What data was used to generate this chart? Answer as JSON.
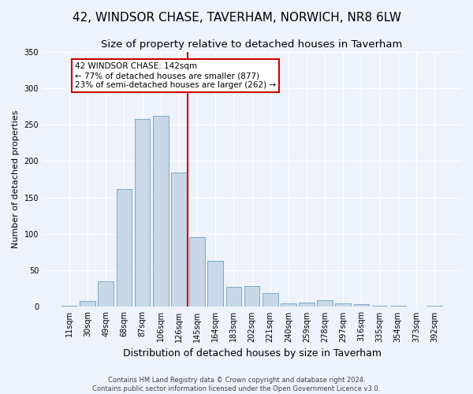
{
  "title": "42, WINDSOR CHASE, TAVERHAM, NORWICH, NR8 6LW",
  "subtitle": "Size of property relative to detached houses in Taverham",
  "xlabel": "Distribution of detached houses by size in Taverham",
  "ylabel": "Number of detached properties",
  "categories": [
    "11sqm",
    "30sqm",
    "49sqm",
    "68sqm",
    "87sqm",
    "106sqm",
    "126sqm",
    "145sqm",
    "164sqm",
    "183sqm",
    "202sqm",
    "221sqm",
    "240sqm",
    "259sqm",
    "278sqm",
    "297sqm",
    "316sqm",
    "335sqm",
    "354sqm",
    "373sqm",
    "392sqm"
  ],
  "values": [
    2,
    8,
    35,
    161,
    258,
    262,
    184,
    96,
    63,
    27,
    29,
    19,
    5,
    6,
    9,
    5,
    4,
    2,
    2,
    1,
    2
  ],
  "bar_color": "#c8d8e8",
  "bar_edge_color": "#7aaac8",
  "vline_color": "#cc0000",
  "annotation_text": "42 WINDSOR CHASE: 142sqm\n← 77% of detached houses are smaller (877)\n23% of semi-detached houses are larger (262) →",
  "annotation_box_color": "#cc0000",
  "bg_color": "#eef2fa",
  "grid_color": "#ffffff",
  "footer1": "Contains HM Land Registry data © Crown copyright and database right 2024.",
  "footer2": "Contains public sector information licensed under the Open Government Licence v3.0.",
  "ylim": [
    0,
    350
  ],
  "yticks": [
    0,
    50,
    100,
    150,
    200,
    250,
    300,
    350
  ],
  "title_fontsize": 11,
  "subtitle_fontsize": 9.5,
  "xlabel_fontsize": 9,
  "ylabel_fontsize": 8,
  "tick_fontsize": 7,
  "footer_fontsize": 6
}
